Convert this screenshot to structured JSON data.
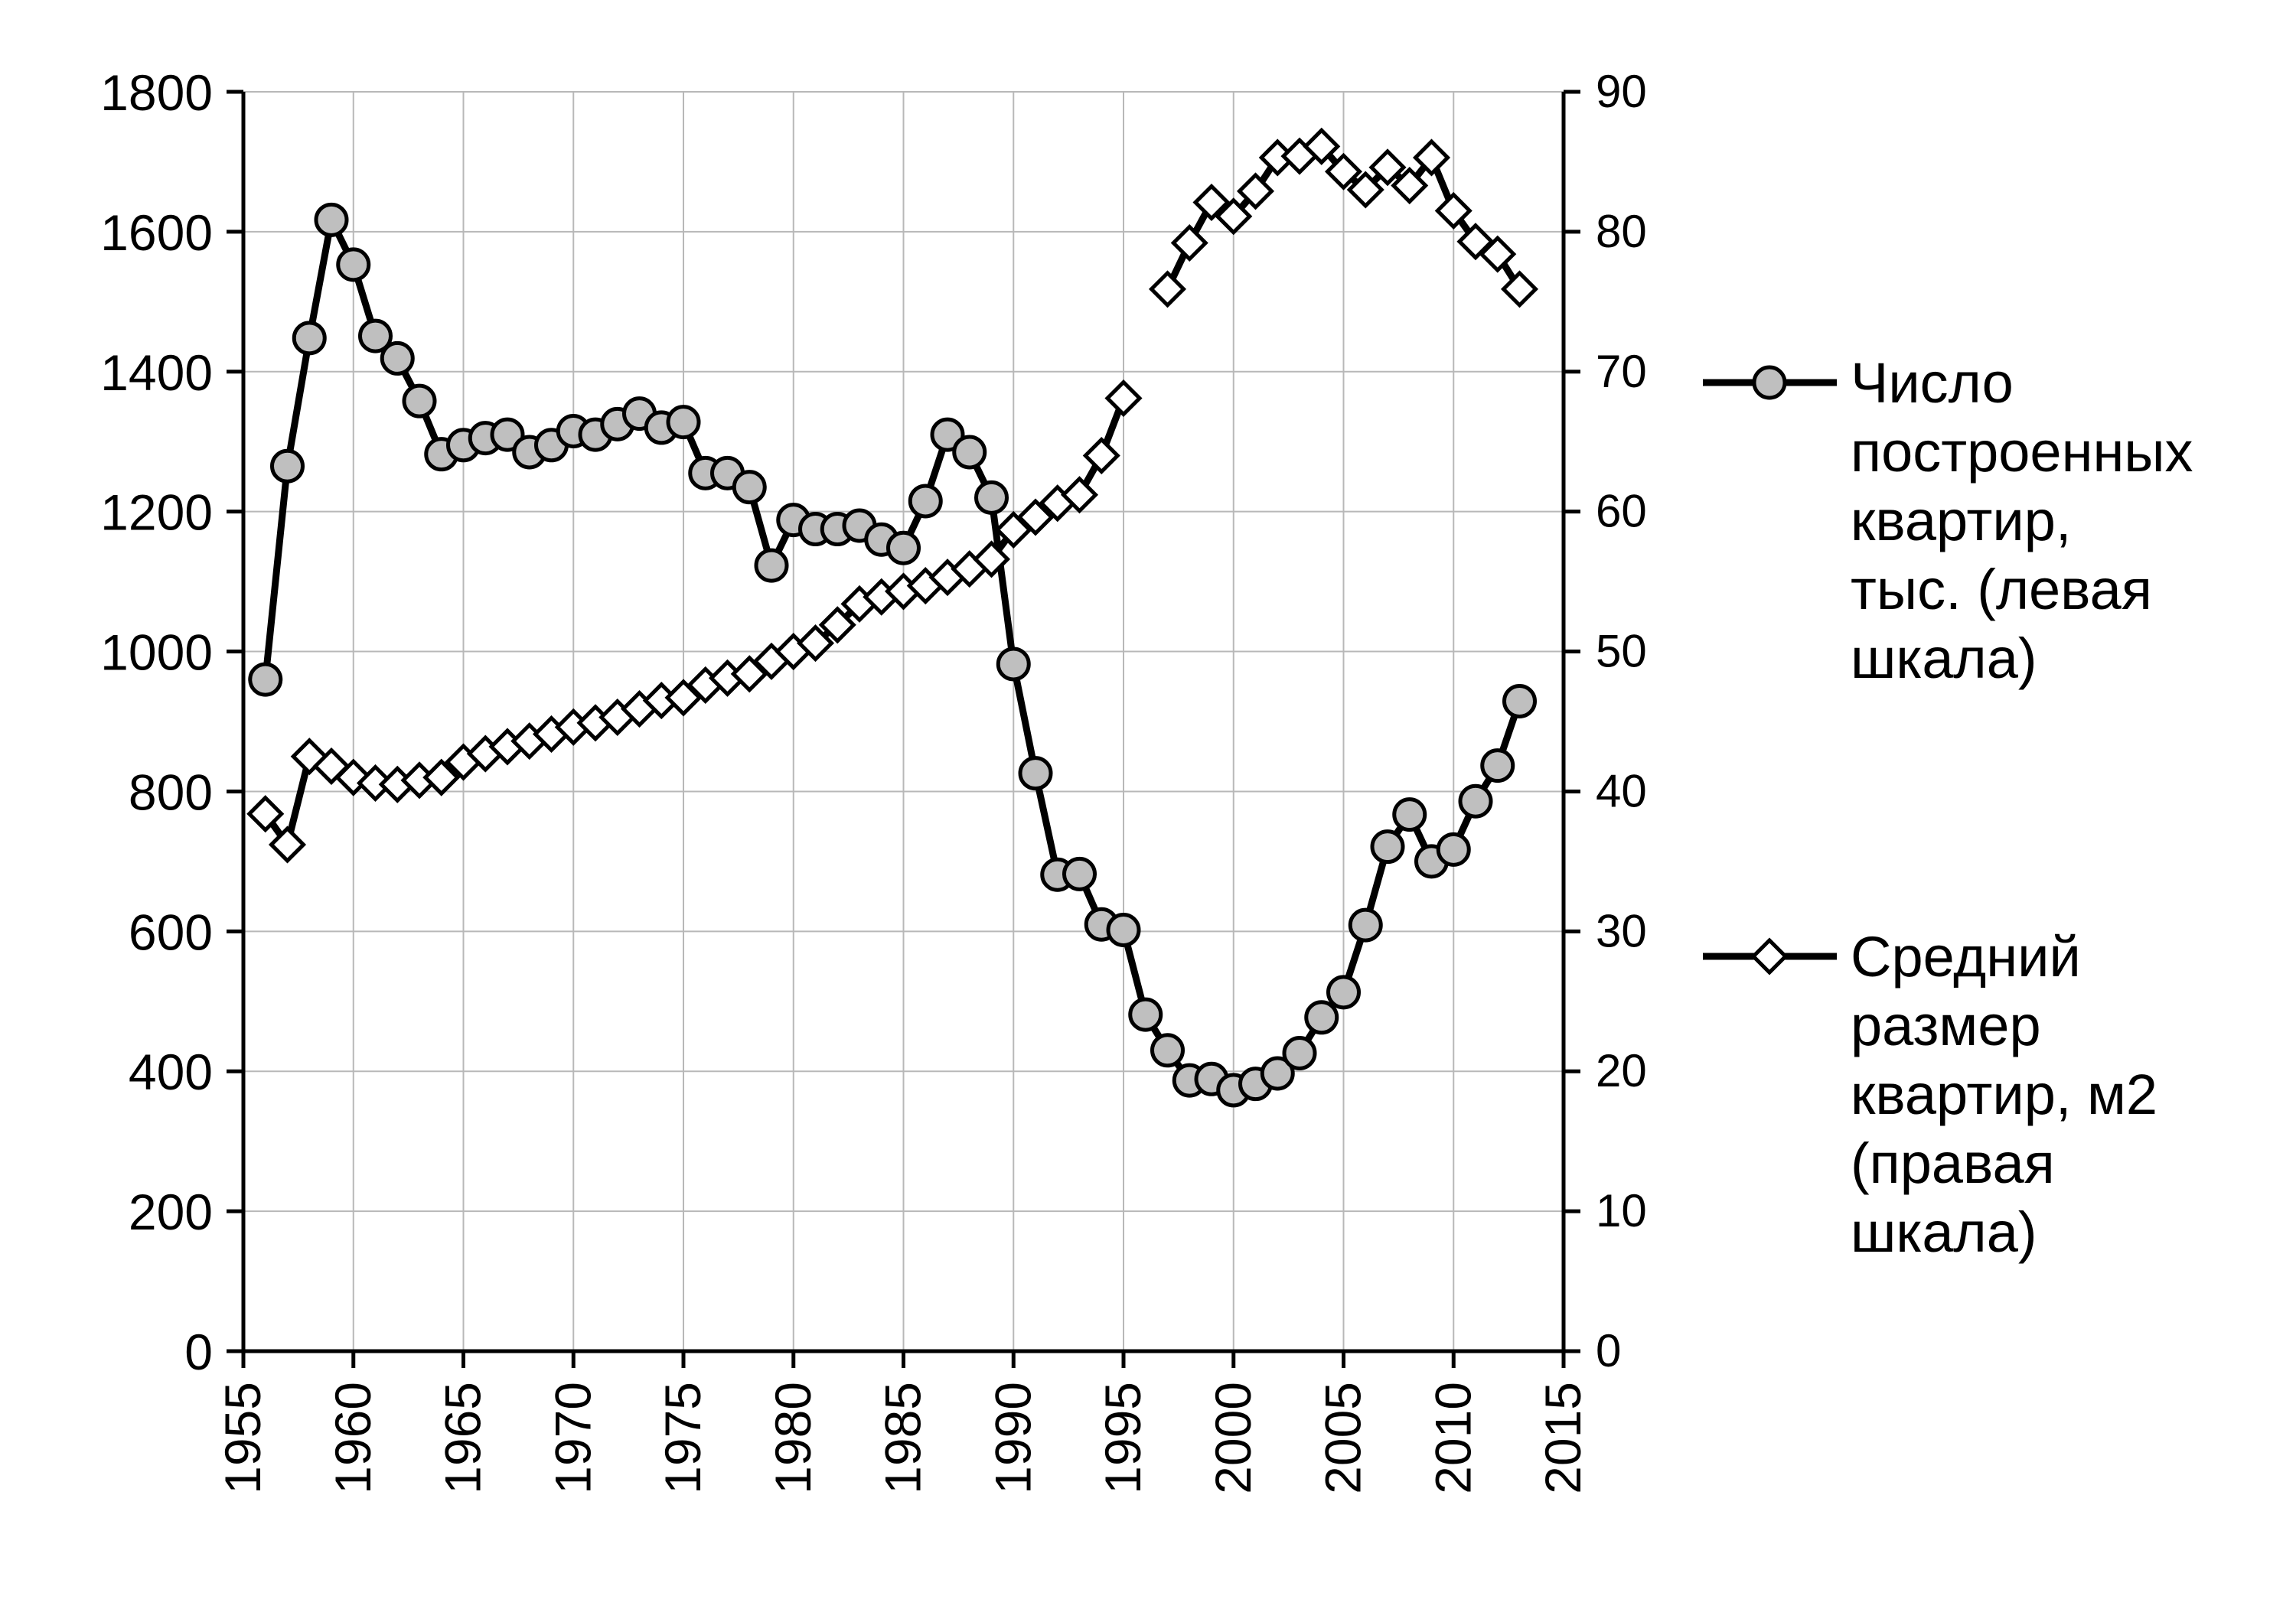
{
  "chart_data": {
    "type": "line",
    "title": "",
    "xlabel": "",
    "ylabel_left": "",
    "ylabel_right": "",
    "x_range": [
      1955,
      2015
    ],
    "x_ticks": [
      "1955",
      "1960",
      "1965",
      "1970",
      "1975",
      "1980",
      "1985",
      "1990",
      "1995",
      "2000",
      "2005",
      "2010",
      "2015"
    ],
    "y_left_range": [
      0,
      1800
    ],
    "y_left_ticks": [
      "0",
      "200",
      "400",
      "600",
      "800",
      "1000",
      "1200",
      "1400",
      "1600",
      "1800"
    ],
    "y_right_range": [
      0,
      90
    ],
    "y_right_ticks": [
      "0",
      "10",
      "20",
      "30",
      "40",
      "50",
      "60",
      "70",
      "80",
      "90"
    ],
    "grid": true,
    "legend_position": "right",
    "series": [
      {
        "name": "Число построенных квартир, тыс. (левая шкала)",
        "legend_lines": [
          "Число",
          "построенных",
          "квартир,",
          "тыс. (левая",
          "шкала)"
        ],
        "axis": "left",
        "marker": "circle",
        "marker_color": "#bfbfbf",
        "line_color": "#000000",
        "x": [
          1956,
          1957,
          1958,
          1959,
          1960,
          1961,
          1962,
          1963,
          1964,
          1965,
          1966,
          1967,
          1968,
          1969,
          1970,
          1971,
          1972,
          1973,
          1974,
          1975,
          1976,
          1977,
          1978,
          1979,
          1980,
          1981,
          1982,
          1983,
          1984,
          1985,
          1986,
          1987,
          1988,
          1989,
          1990,
          1991,
          1992,
          1993,
          1994,
          1995,
          1996,
          1997,
          1998,
          1999,
          2000,
          2001,
          2002,
          2003,
          2004,
          2005,
          2006,
          2007,
          2008,
          2009,
          2010,
          2011,
          2012,
          2013
        ],
        "values": [
          960,
          1265,
          1448,
          1617,
          1553,
          1451,
          1419,
          1358,
          1282,
          1295,
          1305,
          1310,
          1285,
          1295,
          1315,
          1310,
          1325,
          1340,
          1320,
          1328,
          1255,
          1255,
          1235,
          1123,
          1188,
          1175,
          1175,
          1180,
          1160,
          1148,
          1215,
          1310,
          1285,
          1220,
          982,
          826,
          681,
          682,
          610,
          602,
          481,
          430,
          387,
          389,
          373,
          382,
          397,
          426,
          477,
          513,
          609,
          721,
          767,
          700,
          717,
          786,
          837,
          929
        ]
      },
      {
        "name": "Средний размер квартир, м2 (правая шкала)",
        "legend_lines": [
          "Средний",
          "размер",
          "квартир, м2",
          "(правая",
          "шкала)"
        ],
        "axis": "right",
        "marker": "diamond",
        "marker_color": "#ffffff",
        "line_color": "#000000",
        "segments": [
          {
            "x": [
              1956,
              1957,
              1958,
              1959,
              1960,
              1961,
              1962,
              1963,
              1964,
              1965,
              1966,
              1967,
              1968,
              1969,
              1970,
              1971,
              1972,
              1973,
              1974,
              1975,
              1976,
              1977,
              1978,
              1979,
              1980,
              1981,
              1982,
              1983,
              1984,
              1985,
              1986,
              1987,
              1988,
              1989,
              1990,
              1991,
              1992,
              1993,
              1994,
              1995
            ],
            "values": [
              38.4,
              36.2,
              42.5,
              41.8,
              41.0,
              40.6,
              40.5,
              40.8,
              41.0,
              42.1,
              42.7,
              43.2,
              43.6,
              44.1,
              44.6,
              44.9,
              45.3,
              45.9,
              46.5,
              46.7,
              47.6,
              48.1,
              48.4,
              49.3,
              50.0,
              50.6,
              51.9,
              53.4,
              53.9,
              54.3,
              54.7,
              55.3,
              55.9,
              56.6,
              58.7,
              59.6,
              60.6,
              61.2,
              64.0,
              68.1
            ]
          },
          {
            "x": [
              1997,
              1998,
              1999,
              2000,
              2001,
              2002,
              2003,
              2004,
              2005,
              2006,
              2007,
              2008,
              2009,
              2010,
              2011,
              2012,
              2013
            ],
            "values": [
              75.9,
              79.2,
              82.1,
              81.1,
              82.9,
              85.3,
              85.4,
              86.1,
              84.3,
              83.0,
              84.6,
              83.3,
              85.3,
              81.5,
              79.3,
              78.4,
              75.9
            ]
          }
        ]
      }
    ]
  }
}
